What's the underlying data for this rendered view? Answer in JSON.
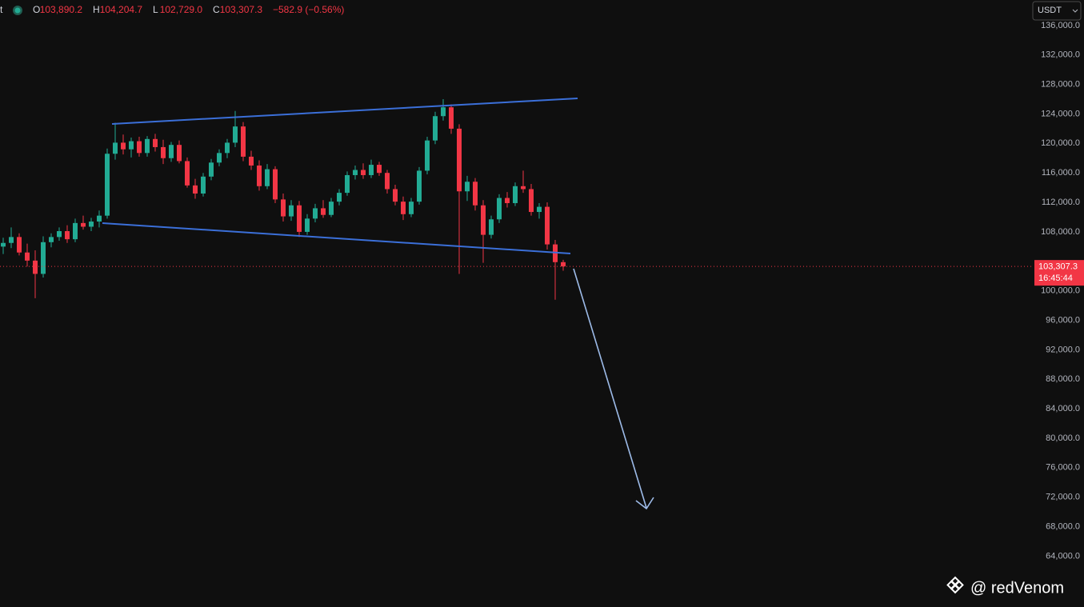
{
  "chart_data": {
    "type": "candlestick",
    "symbol_fragment": "t",
    "ohlc_header": [
      {
        "key": "O",
        "value": "103,890.2"
      },
      {
        "key": "H",
        "value": "104,204.7"
      },
      {
        "key": "L",
        "value": "102,729.0"
      },
      {
        "key": "C",
        "value": "103,307.3"
      }
    ],
    "change": "−582.9 (−0.56%)",
    "currency": "USDT",
    "price_label": "103,307.3",
    "countdown": "16:45:44",
    "watermark": "@ redVenom",
    "up_color": "#22ab94",
    "down_color": "#f23645",
    "ylim": [
      57100,
      139460
    ],
    "yticks": [
      {
        "value": 136000,
        "label": "136,000.0"
      },
      {
        "value": 132000,
        "label": "132,000.0"
      },
      {
        "value": 128000,
        "label": "128,000.0"
      },
      {
        "value": 124000,
        "label": "124,000.0"
      },
      {
        "value": 120000,
        "label": "120,000.0"
      },
      {
        "value": 116000,
        "label": "116,000.0"
      },
      {
        "value": 112000,
        "label": "112,000.0"
      },
      {
        "value": 108000,
        "label": "108,000.0"
      },
      {
        "value": 100000,
        "label": "100,000.0"
      },
      {
        "value": 96000,
        "label": "96,000.0"
      },
      {
        "value": 92000,
        "label": "92,000.0"
      },
      {
        "value": 88000,
        "label": "88,000.0"
      },
      {
        "value": 84000,
        "label": "84,000.0"
      },
      {
        "value": 80000,
        "label": "80,000.0"
      },
      {
        "value": 76000,
        "label": "76,000.0"
      },
      {
        "value": 72000,
        "label": "72,000.0"
      },
      {
        "value": 68000,
        "label": "68,000.0"
      },
      {
        "value": 64000,
        "label": "64,000.0"
      }
    ],
    "open": [
      106000,
      106500,
      107300,
      105200,
      104100,
      102300,
      106600,
      107300,
      108100,
      107000,
      109200,
      108700,
      109400,
      110200,
      118600,
      120100,
      119200,
      120300,
      118700,
      120600,
      119500,
      118000,
      119800,
      117600,
      114300,
      113200,
      115500,
      117400,
      118700,
      120100,
      122300,
      118200,
      117000,
      114200,
      116500,
      112400,
      110100,
      111600,
      108000,
      109800,
      111200,
      110300,
      112100,
      113300,
      115700,
      116400,
      115700,
      117100,
      116000,
      113800,
      112100,
      110400,
      112100,
      116300,
      120400,
      123700,
      124900,
      122000,
      113500,
      114800,
      111600,
      107600,
      109700,
      112600,
      111900,
      114200,
      113800,
      110700,
      111400,
      106300,
      103890.2
    ],
    "high": [
      107200,
      108600,
      107800,
      106400,
      105500,
      107400,
      107800,
      108600,
      108900,
      109800,
      110200,
      109900,
      110900,
      119300,
      122800,
      121200,
      120800,
      120900,
      121000,
      121300,
      120500,
      120200,
      120400,
      118100,
      115200,
      116000,
      117900,
      119200,
      120600,
      124400,
      122900,
      119000,
      117700,
      117200,
      116900,
      113200,
      112300,
      112200,
      110400,
      111800,
      112300,
      112600,
      113800,
      116200,
      117000,
      117300,
      117800,
      117500,
      116400,
      114400,
      112800,
      112600,
      116800,
      120900,
      124300,
      126000,
      125300,
      122600,
      115600,
      115300,
      112300,
      110200,
      113100,
      113400,
      114700,
      116300,
      114500,
      111900,
      112000,
      106900,
      104204.7
    ],
    "low": [
      105000,
      105800,
      104800,
      103300,
      99000,
      101800,
      105900,
      106800,
      106500,
      106600,
      108300,
      108100,
      108600,
      109800,
      117800,
      118500,
      118100,
      118200,
      118200,
      118900,
      117200,
      117500,
      117300,
      114000,
      112500,
      112800,
      115000,
      116900,
      118000,
      119500,
      117600,
      116400,
      113600,
      113800,
      111900,
      109400,
      109500,
      107300,
      107600,
      109300,
      109900,
      110000,
      111600,
      112900,
      115100,
      115200,
      115300,
      115600,
      113200,
      111600,
      109600,
      110000,
      111700,
      115800,
      119900,
      123100,
      121300,
      102300,
      112200,
      110900,
      103800,
      107100,
      109200,
      111300,
      111500,
      113300,
      110200,
      109800,
      105600,
      98800,
      102729
    ],
    "close": [
      106500,
      107300,
      105200,
      104100,
      102300,
      106600,
      107300,
      108100,
      107000,
      109200,
      108700,
      109400,
      110200,
      118600,
      120100,
      119200,
      120300,
      118700,
      120600,
      119500,
      118000,
      119800,
      117600,
      114300,
      113200,
      115500,
      117400,
      118700,
      120100,
      122300,
      118200,
      117000,
      114200,
      116500,
      112400,
      110100,
      111600,
      108000,
      109800,
      111200,
      110300,
      112100,
      113300,
      115700,
      116400,
      115700,
      117100,
      116000,
      113800,
      112100,
      110400,
      112100,
      116300,
      120400,
      123700,
      124900,
      122000,
      113500,
      114800,
      111600,
      107600,
      109700,
      112600,
      111900,
      114200,
      113800,
      110700,
      111400,
      106300,
      103890.2,
      103307.3
    ]
  }
}
